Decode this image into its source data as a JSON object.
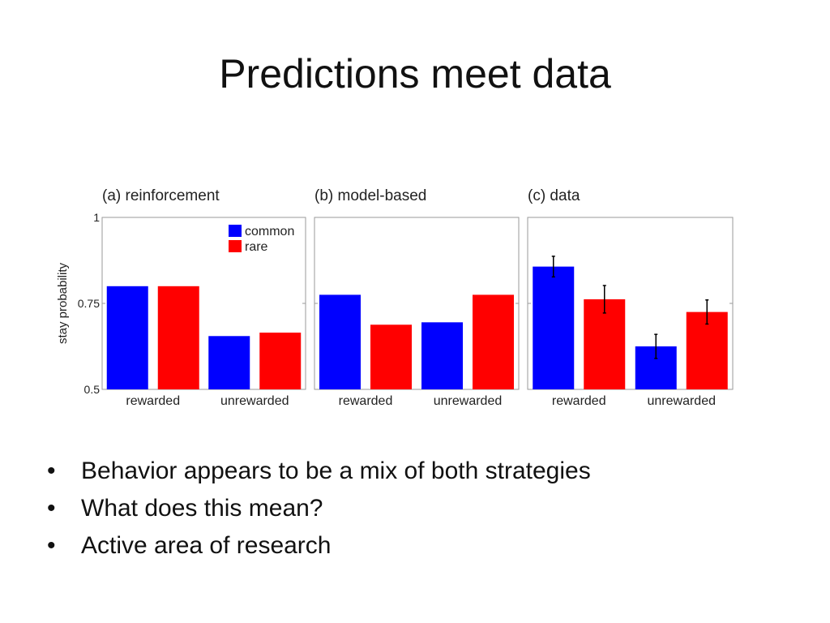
{
  "slide": {
    "title": "Predictions meet data",
    "bullets": [
      "Behavior appears to be a mix of both strategies",
      "What does this mean?",
      "Active area of research"
    ]
  },
  "colors": {
    "common": "#0000ff",
    "rare": "#ff0000"
  },
  "chart_data": [
    {
      "type": "bar",
      "title": "(a) reinforcement",
      "ylabel": "stay probability",
      "ylim": [
        0.5,
        1
      ],
      "yticks": [
        "0.5",
        "0.75",
        "1"
      ],
      "categories": [
        "rewarded",
        "unrewarded"
      ],
      "legend": {
        "position": "top-right"
      },
      "series": [
        {
          "name": "common",
          "values": [
            0.8,
            0.655
          ]
        },
        {
          "name": "rare",
          "values": [
            0.8,
            0.665
          ]
        }
      ]
    },
    {
      "type": "bar",
      "title": "(b) model-based",
      "ylim": [
        0.5,
        1
      ],
      "categories": [
        "rewarded",
        "unrewarded"
      ],
      "series": [
        {
          "name": "common",
          "values": [
            0.775,
            0.695
          ]
        },
        {
          "name": "rare",
          "values": [
            0.688,
            0.775
          ]
        }
      ]
    },
    {
      "type": "bar",
      "title": "(c) data",
      "ylim": [
        0.5,
        1
      ],
      "categories": [
        "rewarded",
        "unrewarded"
      ],
      "series": [
        {
          "name": "common",
          "values": [
            0.857,
            0.625
          ],
          "error": [
            0.03,
            0.035
          ]
        },
        {
          "name": "rare",
          "values": [
            0.762,
            0.725
          ],
          "error": [
            0.04,
            0.035
          ]
        }
      ]
    }
  ]
}
